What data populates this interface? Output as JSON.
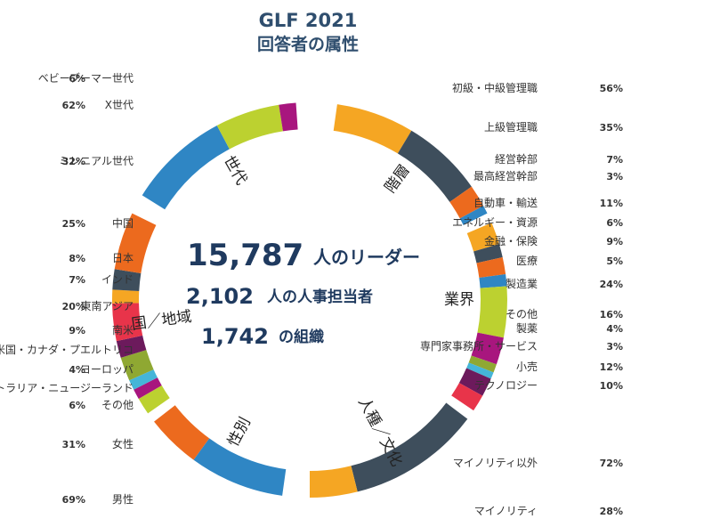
{
  "title": "GLF 2021",
  "subtitle": "回答者の属性",
  "center": {
    "leaders_value": "15,787",
    "leaders_label": "人のリーダー",
    "hr_value": "2,102",
    "hr_label": "人の人事担当者",
    "org_value": "1,742",
    "org_label": "の組織"
  },
  "chart_data": {
    "type": "donut",
    "groups": [
      {
        "name": "階層",
        "items": [
          {
            "label": "初級・中級管理職",
            "value": 56,
            "color": "#f5a623"
          },
          {
            "label": "上級管理職",
            "value": 35,
            "color": "#3e4e5c"
          },
          {
            "label": "経営幹部",
            "value": 7,
            "color": "#ec6a1e"
          },
          {
            "label": "最高経営幹部",
            "value": 3,
            "color": "#2f86c4"
          }
        ]
      },
      {
        "name": "業界",
        "items": [
          {
            "label": "自動車・輸送",
            "value": 11,
            "color": "#f5a623"
          },
          {
            "label": "エネルギー・資源",
            "value": 6,
            "color": "#3e4e5c"
          },
          {
            "label": "金融・保険",
            "value": 9,
            "color": "#ec6a1e"
          },
          {
            "label": "医療",
            "value": 5,
            "color": "#2f86c4"
          },
          {
            "label": "製造業",
            "value": 24,
            "color": "#bcd130"
          },
          {
            "label": "その他",
            "value": 16,
            "color": "#a8167e"
          },
          {
            "label": "製薬",
            "value": 4,
            "color": "#8fa832"
          },
          {
            "label": "専門家事務所・サービス",
            "value": 3,
            "color": "#45b5d8"
          },
          {
            "label": "小売",
            "value": 12,
            "color": "#6c1a5c"
          },
          {
            "label": "テクノロジー",
            "value": 10,
            "color": "#e8344a"
          }
        ]
      },
      {
        "name": "人種／文化",
        "items": [
          {
            "label": "マイノリティ以外",
            "value": 72,
            "color": "#3e4e5c"
          },
          {
            "label": "マイノリティ",
            "value": 28,
            "color": "#f5a623"
          }
        ]
      },
      {
        "name": "性別",
        "items": [
          {
            "label": "男性",
            "value": 69,
            "color": "#2f86c4"
          },
          {
            "label": "女性",
            "value": 31,
            "color": "#ec6a1e"
          }
        ]
      },
      {
        "name": "国／地域",
        "items": [
          {
            "label": "その他",
            "value": 6,
            "color": "#bcd130"
          },
          {
            "label": "オーストラリア・ニュージーランド",
            "value": null,
            "color": "#a8167e"
          },
          {
            "label": "ヨーロッパ",
            "value": 4,
            "color": "#45b5d8"
          },
          {
            "label": "米国・カナダ・プエルトリコ",
            "value": null,
            "color": "#8fa832"
          },
          {
            "label": "南米",
            "value": 9,
            "color": "#6c1a5c"
          },
          {
            "label": "東南アジア",
            "value": 20,
            "color": "#e8344a"
          },
          {
            "label": "インド",
            "value": 7,
            "color": "#f5a623"
          },
          {
            "label": "日本",
            "value": 8,
            "color": "#3e4e5c"
          },
          {
            "label": "中国",
            "value": 25,
            "color": "#ec6a1e"
          }
        ]
      },
      {
        "name": "世代",
        "items": [
          {
            "label": "ミレニアル世代",
            "value": 32,
            "color": "#2f86c4"
          },
          {
            "label": "X世代",
            "value": 62,
            "color": "#bcd130"
          },
          {
            "label": "ベビーブーマー世代",
            "value": 6,
            "color": "#a8167e"
          }
        ]
      }
    ]
  }
}
